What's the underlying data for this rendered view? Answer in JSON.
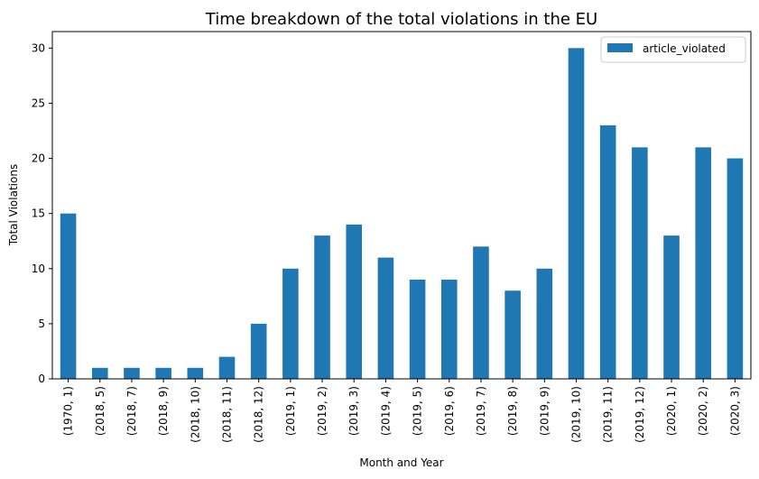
{
  "chart_data": {
    "type": "bar",
    "title": "Time breakdown of the total violations in the EU",
    "xlabel": "Month and Year",
    "ylabel": "Total Violations",
    "categories": [
      "(1970, 1)",
      "(2018, 5)",
      "(2018, 7)",
      "(2018, 9)",
      "(2018, 10)",
      "(2018, 11)",
      "(2018, 12)",
      "(2019, 1)",
      "(2019, 2)",
      "(2019, 3)",
      "(2019, 4)",
      "(2019, 5)",
      "(2019, 6)",
      "(2019, 7)",
      "(2019, 8)",
      "(2019, 9)",
      "(2019, 10)",
      "(2019, 11)",
      "(2019, 12)",
      "(2020, 1)",
      "(2020, 2)",
      "(2020, 3)"
    ],
    "series": [
      {
        "name": "article_violated",
        "color": "#1f77b4",
        "values": [
          15,
          1,
          1,
          1,
          1,
          2,
          5,
          10,
          13,
          14,
          11,
          9,
          9,
          12,
          8,
          10,
          30,
          23,
          21,
          13,
          21,
          20
        ]
      }
    ],
    "yticks": [
      "0",
      "5",
      "10",
      "15",
      "20",
      "25",
      "30"
    ],
    "ylim": [
      0,
      31.5
    ],
    "grid": false,
    "legend_position": "top-right"
  }
}
